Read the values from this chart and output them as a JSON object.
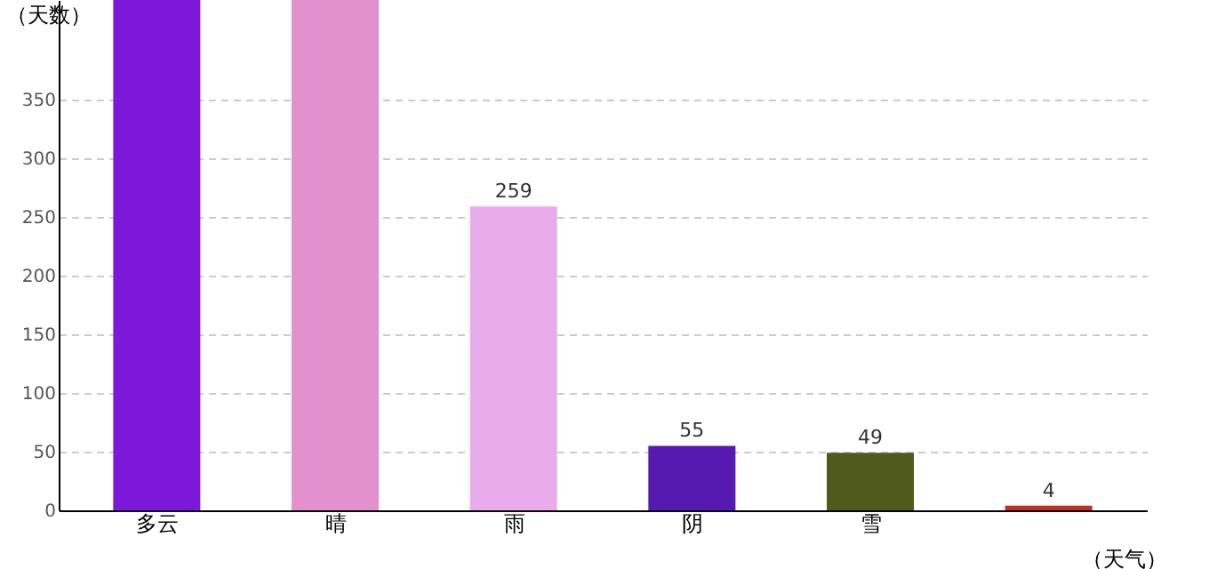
{
  "chart_data": {
    "type": "bar",
    "xlabel": "（天气）",
    "ylabel": "（天数）",
    "categories": [
      "多云",
      "晴",
      "雨",
      "阴",
      "雪",
      null
    ],
    "values": [
      435,
      435,
      259,
      55,
      49,
      4
    ],
    "value_labels": [
      null,
      null,
      "259",
      "55",
      "49",
      "4"
    ],
    "colors": [
      "#7d18d8",
      "#e290ce",
      "#eaabeb",
      "#571ab0",
      "#4f5a1c",
      "#b8322a"
    ],
    "ylim": [
      0,
      435
    ],
    "yticks": [
      0,
      50,
      100,
      150,
      200,
      250,
      300,
      350
    ],
    "grid": "y"
  }
}
